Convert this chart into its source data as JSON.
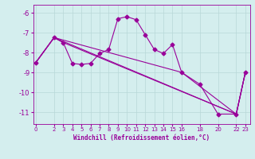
{
  "xlabel": "Windchill (Refroidissement éolien,°C)",
  "background_color": "#d4eeee",
  "line_color": "#990099",
  "grid_color": "#b8d8d8",
  "xticks": [
    0,
    2,
    3,
    4,
    5,
    6,
    7,
    8,
    9,
    10,
    11,
    12,
    13,
    14,
    15,
    16,
    18,
    20,
    22,
    23
  ],
  "yticks": [
    -6,
    -7,
    -8,
    -9,
    -10,
    -11
  ],
  "xlim": [
    -0.3,
    23.5
  ],
  "ylim": [
    -11.6,
    -5.6
  ],
  "line1_x": [
    0,
    2,
    3,
    4,
    5,
    6,
    7,
    8,
    9,
    10,
    11,
    12,
    13,
    14,
    15,
    16,
    18,
    20,
    22,
    23
  ],
  "line1_y": [
    -8.5,
    -7.25,
    -7.5,
    -8.55,
    -8.6,
    -8.55,
    -8.05,
    -7.85,
    -6.3,
    -6.2,
    -6.35,
    -7.1,
    -7.85,
    -8.05,
    -7.6,
    -9.0,
    -9.6,
    -11.1,
    -11.1,
    -9.0
  ],
  "line2_x": [
    0,
    2,
    22,
    23
  ],
  "line2_y": [
    -8.5,
    -7.25,
    -11.1,
    -9.0
  ],
  "line3_x": [
    0,
    2,
    3,
    22,
    23
  ],
  "line3_y": [
    -8.5,
    -7.25,
    -7.5,
    -11.1,
    -9.0
  ],
  "line4_x": [
    0,
    2,
    16,
    22,
    23
  ],
  "line4_y": [
    -8.5,
    -7.25,
    -9.0,
    -11.1,
    -9.0
  ]
}
